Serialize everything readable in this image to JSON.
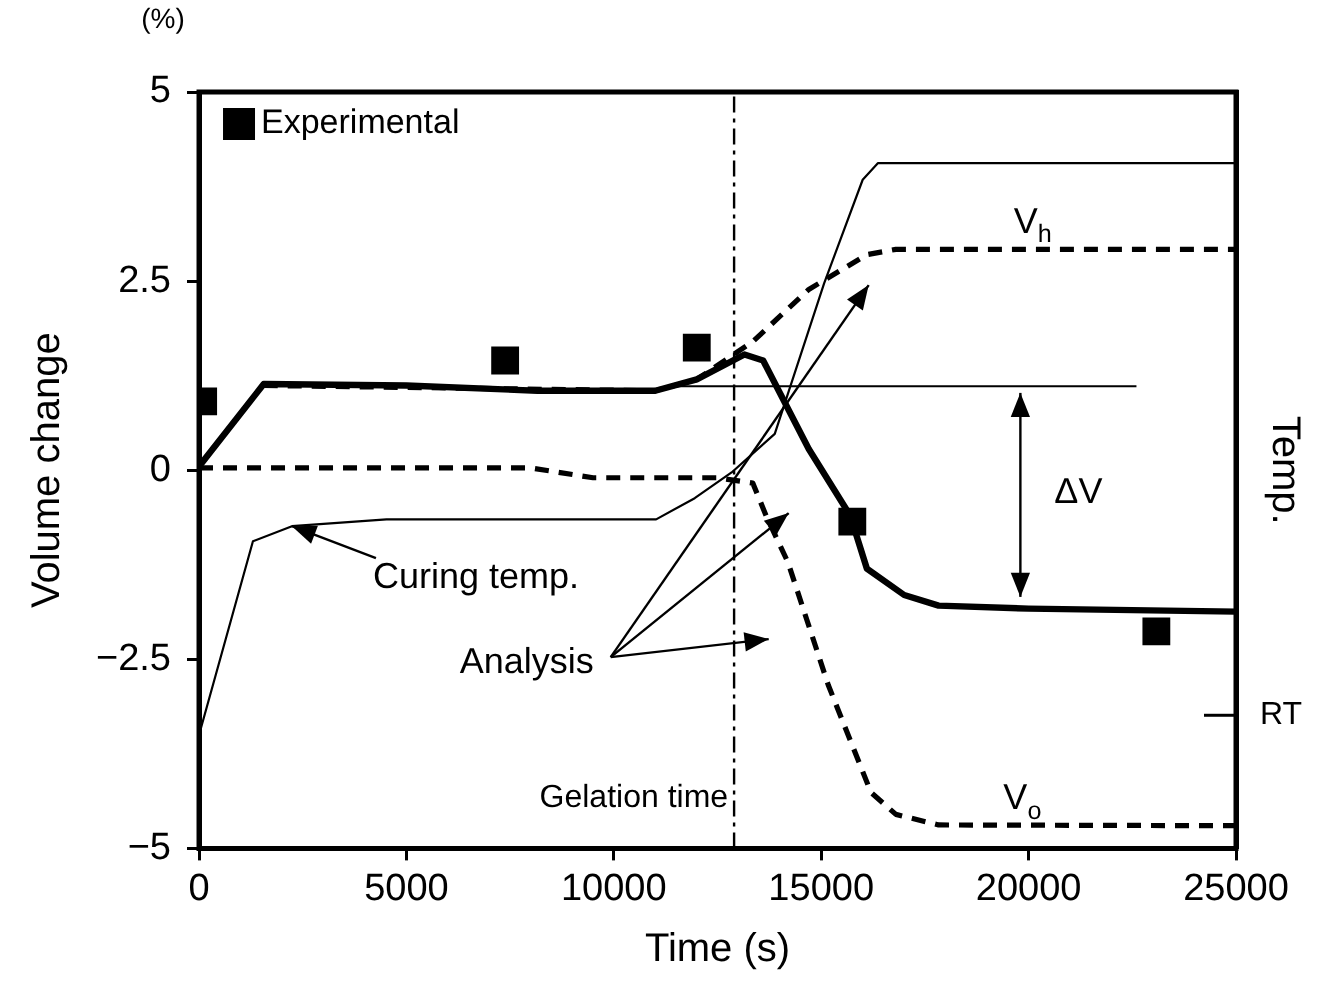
{
  "chart_data": {
    "type": "line",
    "xlabel": "Time (s)",
    "ylabel": "Volume change",
    "y2label": "Temp.",
    "xlim": [
      0,
      25000
    ],
    "xticks": [
      0,
      5000,
      10000,
      15000,
      20000,
      25000
    ],
    "ylim": [
      -5,
      5
    ],
    "yticks": [
      -5,
      -2.5,
      0,
      2.5,
      5
    ],
    "grid": false,
    "legend": "top left",
    "series": [
      {
        "name": "Experimental",
        "type": "scatter",
        "marker": "square",
        "color": "#000000",
        "x": [
          100,
          7380,
          12000,
          15750,
          23080
        ],
        "values": [
          0.91,
          1.45,
          1.62,
          -0.68,
          -2.13
        ]
      },
      {
        "type": "line",
        "marker": "none",
        "line_style": "solid",
        "color": "#000000",
        "x": [
          0,
          1560,
          5000,
          8160,
          11000,
          12000,
          13150,
          13600,
          14700,
          15700,
          16100,
          17000,
          17830,
          20000,
          25000
        ],
        "values": [
          0.05,
          1.14,
          1.12,
          1.05,
          1.05,
          1.2,
          1.53,
          1.45,
          0.28,
          -0.6,
          -1.3,
          -1.65,
          -1.79,
          -1.83,
          -1.87
        ]
      },
      {
        "type": "line",
        "marker": "none",
        "line_style": "dashed",
        "color": "#000000",
        "x": [
          1560,
          11000,
          12000,
          13350,
          14700,
          16100,
          16800,
          25000
        ],
        "values": [
          1.12,
          1.05,
          1.2,
          1.7,
          2.39,
          2.85,
          2.92,
          2.92
        ]
      },
      {
        "type": "line",
        "marker": "none",
        "line_style": "dashed",
        "color": "#000000",
        "x": [
          0,
          8000,
          9500,
          12500,
          13350,
          13670,
          14200,
          15170,
          16200,
          16800,
          17830,
          25000
        ],
        "values": [
          0.03,
          0.03,
          -0.1,
          -0.1,
          -0.17,
          -0.6,
          -1.22,
          -2.84,
          -4.26,
          -4.55,
          -4.69,
          -4.7
        ]
      },
      {
        "type": "line",
        "marker": "none",
        "line_style": "solid",
        "color": "#000000",
        "x": [
          11500,
          22600
        ],
        "values": [
          1.11,
          1.11
        ]
      },
      {
        "type": "line",
        "marker": "none",
        "line_style": "solid",
        "color": "#000000",
        "x": [
          0,
          1300,
          2240,
          4520,
          11020,
          11950,
          12840,
          13880,
          15070,
          16000,
          16370,
          25000
        ],
        "values": [
          -3.5,
          -0.94,
          -0.74,
          -0.65,
          -0.65,
          -0.37,
          -0.03,
          0.48,
          2.47,
          3.84,
          4.06,
          4.06
        ]
      }
    ],
    "ref_lines": [
      {
        "axis": "x",
        "value": 12900,
        "label": "Gelation time",
        "line_style": "dashed",
        "color": "#000000"
      }
    ],
    "annotations": [
      "(%)",
      {
        "text": "Curing temp.",
        "x": 2240,
        "y": -0.74
      },
      "Analysis",
      "ΔV",
      "V$_{h}$",
      "V$_{o}$",
      "RT"
    ]
  }
}
